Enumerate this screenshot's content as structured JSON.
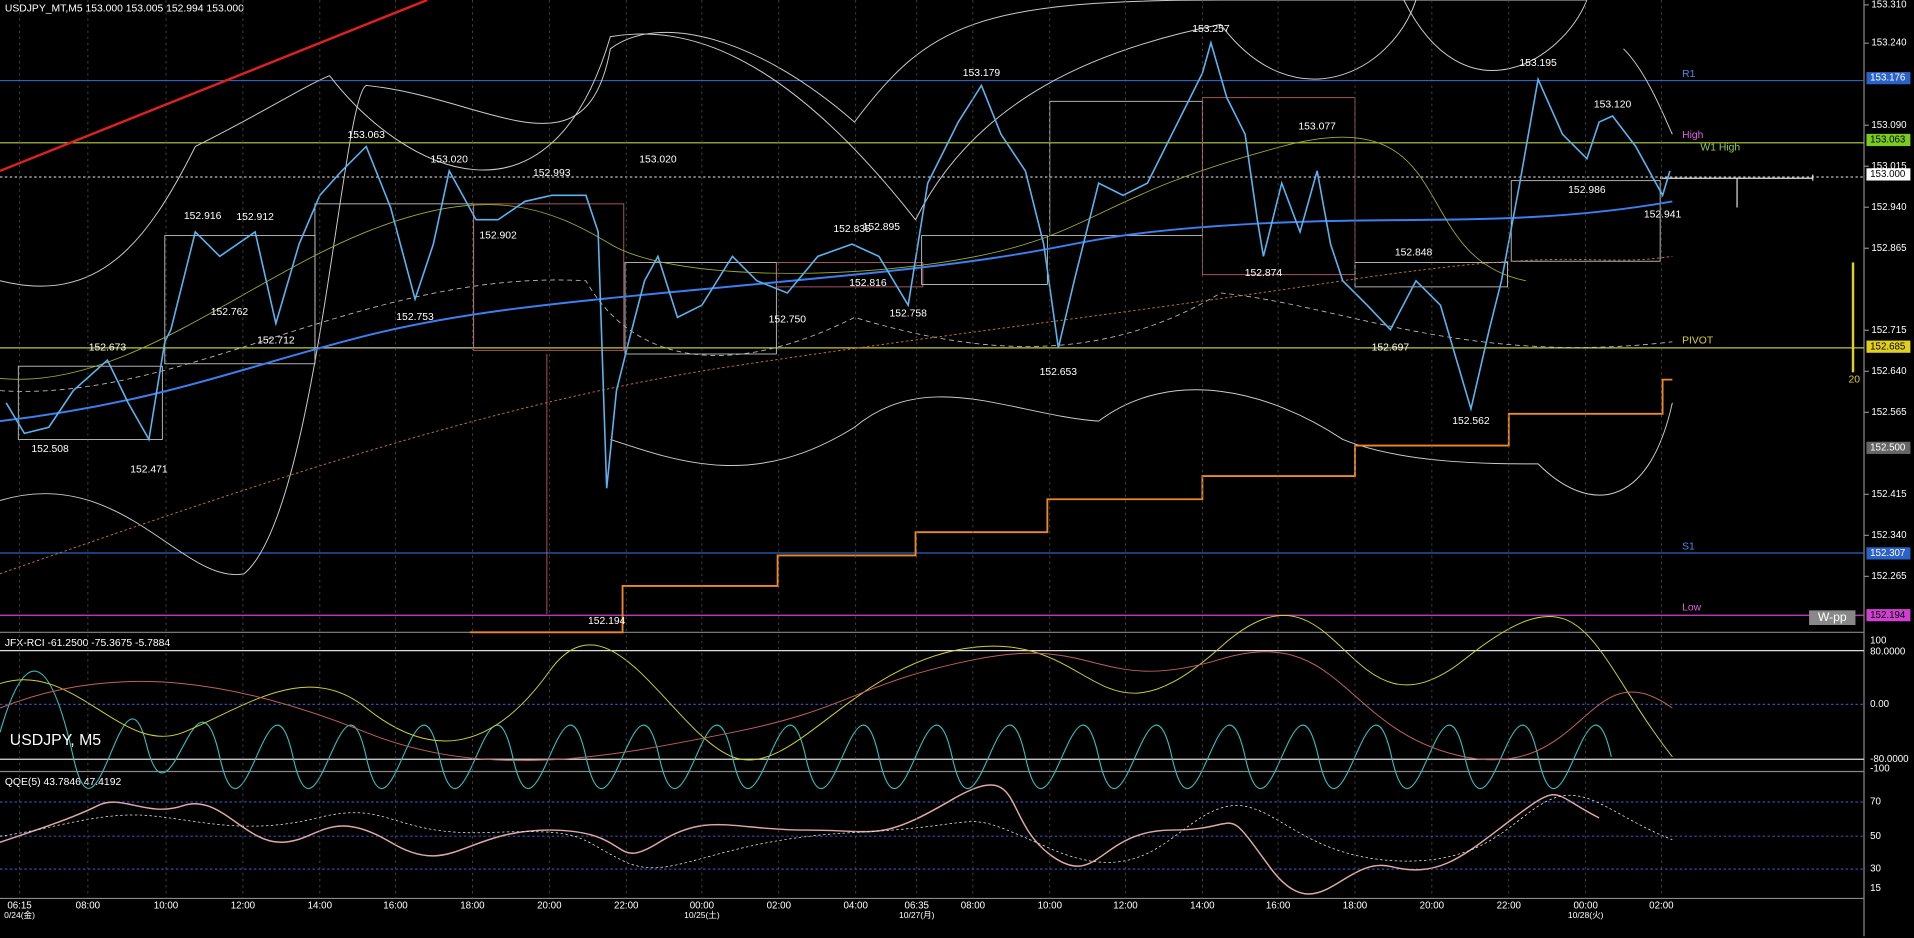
{
  "header": {
    "symbol_info": "USDJPY_MT,M5  153.000 153.005 152.994 153.000"
  },
  "price_axis": [
    "153.310",
    "153.240",
    "153.090",
    "153.015",
    "152.940",
    "152.865",
    "152.715",
    "152.640",
    "152.565",
    "152.415",
    "152.340",
    "152.265"
  ],
  "price_markers": [
    {
      "label": "153.176",
      "kind": "r1"
    },
    {
      "label": "153.063",
      "kind": "high"
    },
    {
      "label": "153.000",
      "kind": "bid"
    },
    {
      "label": "152.685",
      "kind": "pivot"
    },
    {
      "label": "152.500",
      "kind": "grey"
    },
    {
      "label": "152.307",
      "kind": "s1"
    },
    {
      "label": "152.194",
      "kind": "low"
    }
  ],
  "time_axis": {
    "times": [
      "06:15",
      "08:00",
      "10:00",
      "12:00",
      "14:00",
      "16:00",
      "18:00",
      "20:00",
      "22:00",
      "00:00",
      "02:00",
      "04:00",
      "06:35",
      "08:00",
      "10:00",
      "12:00",
      "14:00",
      "16:00",
      "18:00",
      "20:00",
      "22:00",
      "00:00",
      "02:00"
    ],
    "dates": [
      "0/24(金)",
      "10/25(土)",
      "10/27(月)",
      "10/28(火)"
    ]
  },
  "annotations": [
    "152.673",
    "152.508",
    "152.471",
    "152.916",
    "152.912",
    "152.762",
    "152.712",
    "153.063",
    "153.020",
    "152.902",
    "152.753",
    "152.993",
    "153.020",
    "152.194",
    "152.750",
    "152.816",
    "152.758",
    "152.835",
    "152.895",
    "153.179",
    "152.653",
    "153.257",
    "153.077",
    "152.874",
    "152.848",
    "152.697",
    "152.562",
    "153.195",
    "153.120",
    "152.986",
    "152.941"
  ],
  "levels": [
    "R1",
    "High",
    "W1 High",
    "PIVOT",
    "S1",
    "Low"
  ],
  "button": "W-pp",
  "marker": "20",
  "rci": {
    "label": "JFX-RCI -61.2500 -75.3675 -5.7884",
    "watermark": "USDJPY, M5",
    "axis": [
      "100",
      "80.0000",
      "0.00",
      "-80.0000",
      "-100"
    ]
  },
  "qqe": {
    "label": "QQE(5) 43.7846 47.4192",
    "axis": [
      "70",
      "50",
      "30",
      "15"
    ]
  }
}
